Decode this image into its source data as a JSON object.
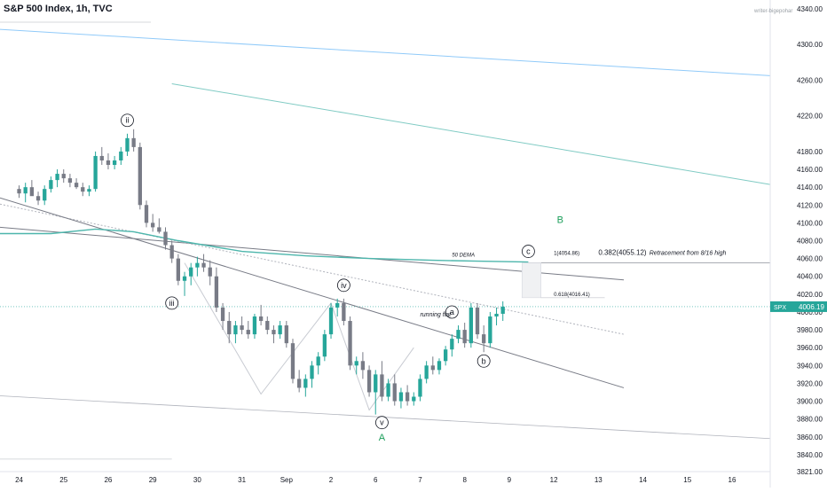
{
  "header": {
    "title": "S&P 500 Index, 1h, TVC",
    "watermark": "writer-bigepohar"
  },
  "colors": {
    "up": "#26a69a",
    "down": "#787b86",
    "dema": "#4db6ac",
    "fan": "#90caf9",
    "channel": "#787b86",
    "label_green": "#1b9e5a",
    "price_badge": "#26a69a"
  },
  "chart_data": {
    "type": "candlestick",
    "title": "S&P 500 Index, 1h, TVC",
    "ylim": [
      3821,
      4340
    ],
    "y_ticks": [
      4340,
      4300,
      4260,
      4220,
      4180,
      4160,
      4140,
      4120,
      4100,
      4080,
      4060,
      4040,
      4020,
      4000,
      3980,
      3960,
      3940,
      3920,
      3900,
      3880,
      3860,
      3840,
      3821
    ],
    "y_tick_labels": [
      "4340.00",
      "4300.00",
      "4260.00",
      "4220.00",
      "4180.00",
      "4160.00",
      "4140.00",
      "4120.00",
      "4100.00",
      "4080.00",
      "4060.00",
      "4040.00",
      "4020.00",
      "4000.00",
      "3980.00",
      "3960.00",
      "3940.00",
      "3920.00",
      "3900.00",
      "3880.00",
      "3860.00",
      "3840.00",
      "3821.00"
    ],
    "x_ticks": [
      {
        "label": "24",
        "x": 0
      },
      {
        "label": "25",
        "x": 7
      },
      {
        "label": "26",
        "x": 14
      },
      {
        "label": "29",
        "x": 21
      },
      {
        "label": "30",
        "x": 28
      },
      {
        "label": "31",
        "x": 35
      },
      {
        "label": "Sep",
        "x": 42
      },
      {
        "label": "2",
        "x": 49
      },
      {
        "label": "6",
        "x": 56
      },
      {
        "label": "7",
        "x": 63
      },
      {
        "label": "8",
        "x": 70
      },
      {
        "label": "9",
        "x": 77
      },
      {
        "label": "12",
        "x": 84
      },
      {
        "label": "13",
        "x": 91
      },
      {
        "label": "14",
        "x": 98
      },
      {
        "label": "15",
        "x": 105
      },
      {
        "label": "16",
        "x": 112
      }
    ],
    "xlim": [
      -3,
      118
    ],
    "current_price": "4006.19",
    "symbol_badge": "SPX",
    "candles": [
      [
        4138,
        4142,
        4128,
        4133
      ],
      [
        4133,
        4145,
        4123,
        4140
      ],
      [
        4140,
        4148,
        4135,
        4130
      ],
      [
        4130,
        4135,
        4120,
        4125
      ],
      [
        4125,
        4142,
        4120,
        4138
      ],
      [
        4138,
        4152,
        4134,
        4148
      ],
      [
        4148,
        4160,
        4140,
        4155
      ],
      [
        4155,
        4160,
        4145,
        4150
      ],
      [
        4150,
        4155,
        4140,
        4145
      ],
      [
        4145,
        4150,
        4138,
        4140
      ],
      [
        4140,
        4145,
        4130,
        4135
      ],
      [
        4135,
        4142,
        4130,
        4138
      ],
      [
        4138,
        4180,
        4135,
        4175
      ],
      [
        4175,
        4185,
        4165,
        4170
      ],
      [
        4170,
        4178,
        4160,
        4165
      ],
      [
        4165,
        4175,
        4160,
        4170
      ],
      [
        4170,
        4185,
        4165,
        4180
      ],
      [
        4180,
        4200,
        4175,
        4195
      ],
      [
        4195,
        4205,
        4180,
        4185
      ],
      [
        4185,
        4190,
        4115,
        4120
      ],
      [
        4120,
        4125,
        4095,
        4100
      ],
      [
        4100,
        4110,
        4090,
        4095
      ],
      [
        4095,
        4105,
        4088,
        4090
      ],
      [
        4090,
        4095,
        4070,
        4075
      ],
      [
        4075,
        4080,
        4055,
        4060
      ],
      [
        4060,
        4065,
        4030,
        4035
      ],
      [
        4035,
        4045,
        4018,
        4040
      ],
      [
        4040,
        4055,
        4030,
        4050
      ],
      [
        4050,
        4062,
        4040,
        4055
      ],
      [
        4055,
        4065,
        4045,
        4050
      ],
      [
        4050,
        4058,
        4030,
        4040
      ],
      [
        4040,
        4050,
        4000,
        4005
      ],
      [
        4005,
        4010,
        3980,
        3990
      ],
      [
        3990,
        4000,
        3965,
        3975
      ],
      [
        3975,
        3990,
        3965,
        3985
      ],
      [
        3985,
        3995,
        3975,
        3980
      ],
      [
        3980,
        3990,
        3970,
        3975
      ],
      [
        3975,
        3998,
        3970,
        3995
      ],
      [
        3995,
        4008,
        3985,
        3990
      ],
      [
        3990,
        3995,
        3975,
        3980
      ],
      [
        3980,
        3985,
        3965,
        3975
      ],
      [
        3975,
        3990,
        3970,
        3985
      ],
      [
        3985,
        3990,
        3960,
        3965
      ],
      [
        3965,
        3970,
        3920,
        3925
      ],
      [
        3925,
        3935,
        3910,
        3915
      ],
      [
        3915,
        3930,
        3905,
        3925
      ],
      [
        3925,
        3945,
        3915,
        3940
      ],
      [
        3940,
        3955,
        3930,
        3950
      ],
      [
        3950,
        3980,
        3945,
        3975
      ],
      [
        3975,
        4010,
        3970,
        4005
      ],
      [
        4005,
        4015,
        3995,
        4010
      ],
      [
        4010,
        4015,
        3985,
        3990
      ],
      [
        3990,
        3995,
        3935,
        3940
      ],
      [
        3940,
        3950,
        3930,
        3945
      ],
      [
        3945,
        3955,
        3925,
        3935
      ],
      [
        3935,
        3940,
        3905,
        3910
      ],
      [
        3910,
        3935,
        3885,
        3930
      ],
      [
        3930,
        3945,
        3900,
        3905
      ],
      [
        3905,
        3925,
        3900,
        3920
      ],
      [
        3920,
        3930,
        3895,
        3900
      ],
      [
        3900,
        3915,
        3892,
        3910
      ],
      [
        3910,
        3918,
        3895,
        3900
      ],
      [
        3900,
        3910,
        3895,
        3905
      ],
      [
        3905,
        3930,
        3900,
        3925
      ],
      [
        3925,
        3945,
        3920,
        3940
      ],
      [
        3940,
        3950,
        3930,
        3935
      ],
      [
        3935,
        3948,
        3930,
        3945
      ],
      [
        3945,
        3962,
        3940,
        3958
      ],
      [
        3958,
        3975,
        3950,
        3970
      ],
      [
        3970,
        3985,
        3965,
        3980
      ],
      [
        3980,
        3988,
        3960,
        3965
      ],
      [
        3965,
        4010,
        3960,
        4005
      ],
      [
        4005,
        4010,
        3970,
        3975
      ],
      [
        3975,
        3985,
        3955,
        3965
      ],
      [
        3965,
        4000,
        3960,
        3995
      ],
      [
        3995,
        4005,
        3985,
        3998
      ],
      [
        3998,
        4012,
        3990,
        4006
      ]
    ]
  },
  "annotations": {
    "wave_ii": "ii",
    "wave_iii": "iii",
    "wave_iv": "iv",
    "wave_v": "v",
    "wave_a": "a",
    "wave_b": "b",
    "wave_c": "c",
    "label_A": "A",
    "label_B": "B",
    "dema": "50 DEMA",
    "running_flat": "running flat",
    "fib_1": "1(4054.86)",
    "fib_0382": "0.382(4055.12)",
    "fib_0618": "0.618(4016.41)",
    "retracement": "Retracement from 8/16 high"
  }
}
